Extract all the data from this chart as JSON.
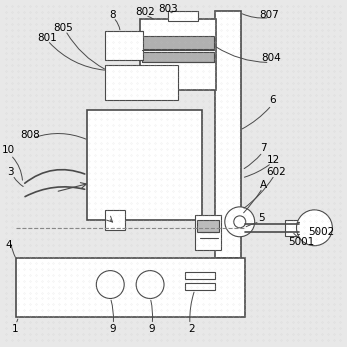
{
  "bg_color": "#e8e8e8",
  "line_color": "#4a4a4a",
  "lw": 0.8,
  "lw2": 1.2,
  "fig_size": [
    3.47,
    3.47
  ],
  "dpi": 100
}
